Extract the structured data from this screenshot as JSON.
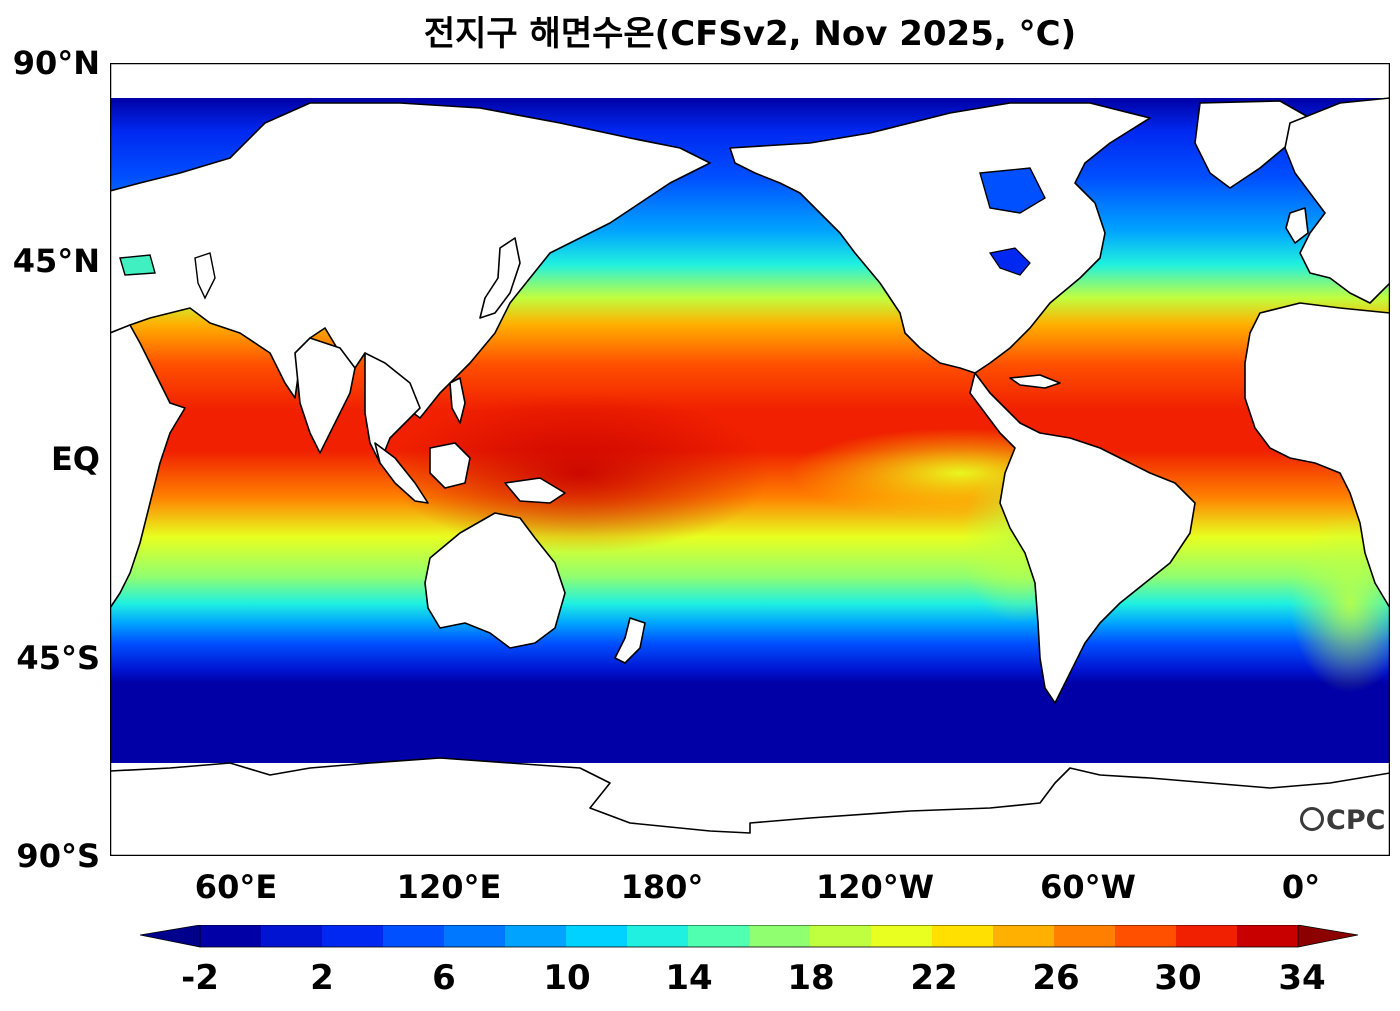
{
  "title": "전지구 해면수온(CFSv2, Nov 2025, °C)",
  "logo_text": "CPC",
  "map": {
    "projection": "equirectangular",
    "lon_range": [
      30,
      390
    ],
    "lat_range": [
      -90,
      90
    ],
    "land_color": "#ffffff",
    "coast_color": "#000000"
  },
  "y_ticks": [
    {
      "label": "90°N",
      "lat": 90
    },
    {
      "label": "45°N",
      "lat": 45
    },
    {
      "label": "EQ",
      "lat": 0
    },
    {
      "label": "45°S",
      "lat": -45
    },
    {
      "label": "90°S",
      "lat": -90
    }
  ],
  "x_ticks": [
    {
      "label": "60°E",
      "lon": 60
    },
    {
      "label": "120°E",
      "lon": 120
    },
    {
      "label": "180°",
      "lon": 180
    },
    {
      "label": "120°W",
      "lon": 240
    },
    {
      "label": "60°W",
      "lon": 300
    },
    {
      "label": "0°",
      "lon": 360
    }
  ],
  "colorbar": {
    "levels": [
      -2,
      0,
      2,
      4,
      6,
      8,
      10,
      12,
      14,
      16,
      18,
      20,
      22,
      24,
      26,
      28,
      30,
      32,
      34
    ],
    "labels": [
      "-2",
      "2",
      "6",
      "10",
      "14",
      "18",
      "22",
      "26",
      "30",
      "34"
    ],
    "label_values": [
      -2,
      2,
      6,
      10,
      14,
      18,
      22,
      26,
      30,
      34
    ],
    "under_color": "#00008c",
    "over_color": "#8c0000",
    "colors": [
      "#0000a6",
      "#0014d2",
      "#0028f0",
      "#0050ff",
      "#0078ff",
      "#00a4ff",
      "#00d2ff",
      "#20f0e0",
      "#50ff b0",
      "#90ff70",
      "#c0ff40",
      "#e8ff20",
      "#ffe000",
      "#ffb000",
      "#ff8000",
      "#ff5000",
      "#f02000",
      "#c80000"
    ]
  }
}
